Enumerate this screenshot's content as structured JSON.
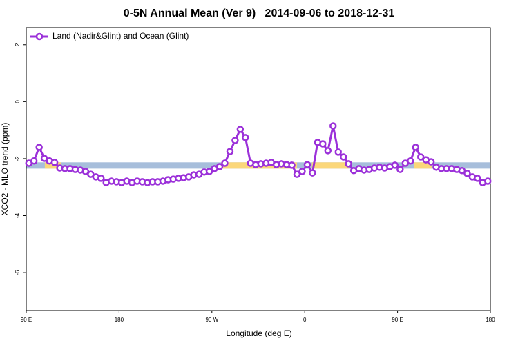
{
  "chart_data": {
    "type": "line",
    "title": "0-5N Annual Mean (Ver 9)   2014-09-06 to 2018-12-31",
    "xlabel": "Longitude (deg E)",
    "ylabel": "XCO2 - MLO trend (ppm)",
    "xlim": [
      90,
      540
    ],
    "ylim": [
      -7.33,
      2.6
    ],
    "xticks": [
      {
        "value": 90,
        "label": "90 E"
      },
      180,
      {
        "value": 270,
        "label": "90 W"
      },
      {
        "value": 360,
        "label": "0"
      },
      {
        "value": 450,
        "label": "90 E"
      },
      {
        "value": 540,
        "label": "180"
      }
    ],
    "yticks": [
      2,
      0,
      -2,
      -4,
      -6
    ],
    "legend": "top-left",
    "band": {
      "low": -2.35,
      "high": -2.13,
      "color": "#a7bedb",
      "segments": [
        {
          "from": 108,
          "to": 123.5,
          "color": "#fbd77a"
        },
        {
          "from": 279,
          "to": 352.5,
          "color": "#fbd77a"
        },
        {
          "from": 367,
          "to": 403,
          "color": "#fbd77a"
        },
        {
          "from": 466,
          "to": 483,
          "color": "#fbd77a"
        }
      ]
    },
    "x": [
      92.5,
      97.5,
      102.5,
      107.5,
      112.5,
      117.5,
      122.5,
      127.5,
      132.5,
      137.5,
      142.5,
      147.5,
      152.5,
      157.5,
      162.5,
      167.5,
      172.5,
      177.5,
      182.5,
      187.5,
      192.5,
      197.5,
      202.5,
      207.5,
      212.5,
      217.5,
      222.5,
      227.5,
      232.5,
      237.5,
      242.5,
      247.5,
      252.5,
      257.5,
      262.5,
      267.5,
      272.5,
      277.5,
      282.5,
      287.5,
      292.5,
      297.5,
      302.5,
      307.5,
      312.5,
      317.5,
      322.5,
      327.5,
      332.5,
      337.5,
      342.5,
      347.5,
      352.5,
      357.5,
      362.5,
      367.5,
      372.5,
      377.5,
      382.5,
      387.5,
      392.5,
      397.5,
      402.5,
      407.5,
      412.5,
      417.5,
      422.5,
      427.5,
      432.5,
      437.5,
      442.5,
      447.5,
      452.5,
      457.5,
      462.5,
      467.5,
      472.5,
      477.5,
      482.5,
      487.5,
      492.5,
      497.5,
      502.5,
      507.5,
      512.5,
      517.5,
      522.5,
      527.5,
      532.5,
      537.5
    ],
    "series": [
      {
        "name": "Land (Nadir&Glint) and Ocean (Glint)",
        "color": "#9b30d9",
        "values": [
          -2.16,
          -2.08,
          -1.6,
          -1.99,
          -2.08,
          -2.13,
          -2.33,
          -2.35,
          -2.35,
          -2.38,
          -2.4,
          -2.45,
          -2.55,
          -2.64,
          -2.69,
          -2.84,
          -2.79,
          -2.81,
          -2.84,
          -2.79,
          -2.84,
          -2.79,
          -2.81,
          -2.84,
          -2.81,
          -2.81,
          -2.79,
          -2.74,
          -2.72,
          -2.69,
          -2.67,
          -2.64,
          -2.57,
          -2.55,
          -2.47,
          -2.45,
          -2.35,
          -2.28,
          -2.16,
          -1.75,
          -1.36,
          -0.97,
          -1.26,
          -2.16,
          -2.21,
          -2.18,
          -2.16,
          -2.13,
          -2.21,
          -2.18,
          -2.21,
          -2.23,
          -2.55,
          -2.45,
          -2.21,
          -2.5,
          -1.43,
          -1.48,
          -1.72,
          -0.85,
          -1.77,
          -1.94,
          -2.18,
          -2.42,
          -2.35,
          -2.4,
          -2.38,
          -2.33,
          -2.3,
          -2.33,
          -2.28,
          -2.23,
          -2.38,
          -2.16,
          -2.08,
          -1.6,
          -1.94,
          -2.04,
          -2.11,
          -2.3,
          -2.35,
          -2.35,
          -2.35,
          -2.38,
          -2.42,
          -2.52,
          -2.64,
          -2.69,
          -2.84,
          -2.79
        ]
      }
    ]
  }
}
